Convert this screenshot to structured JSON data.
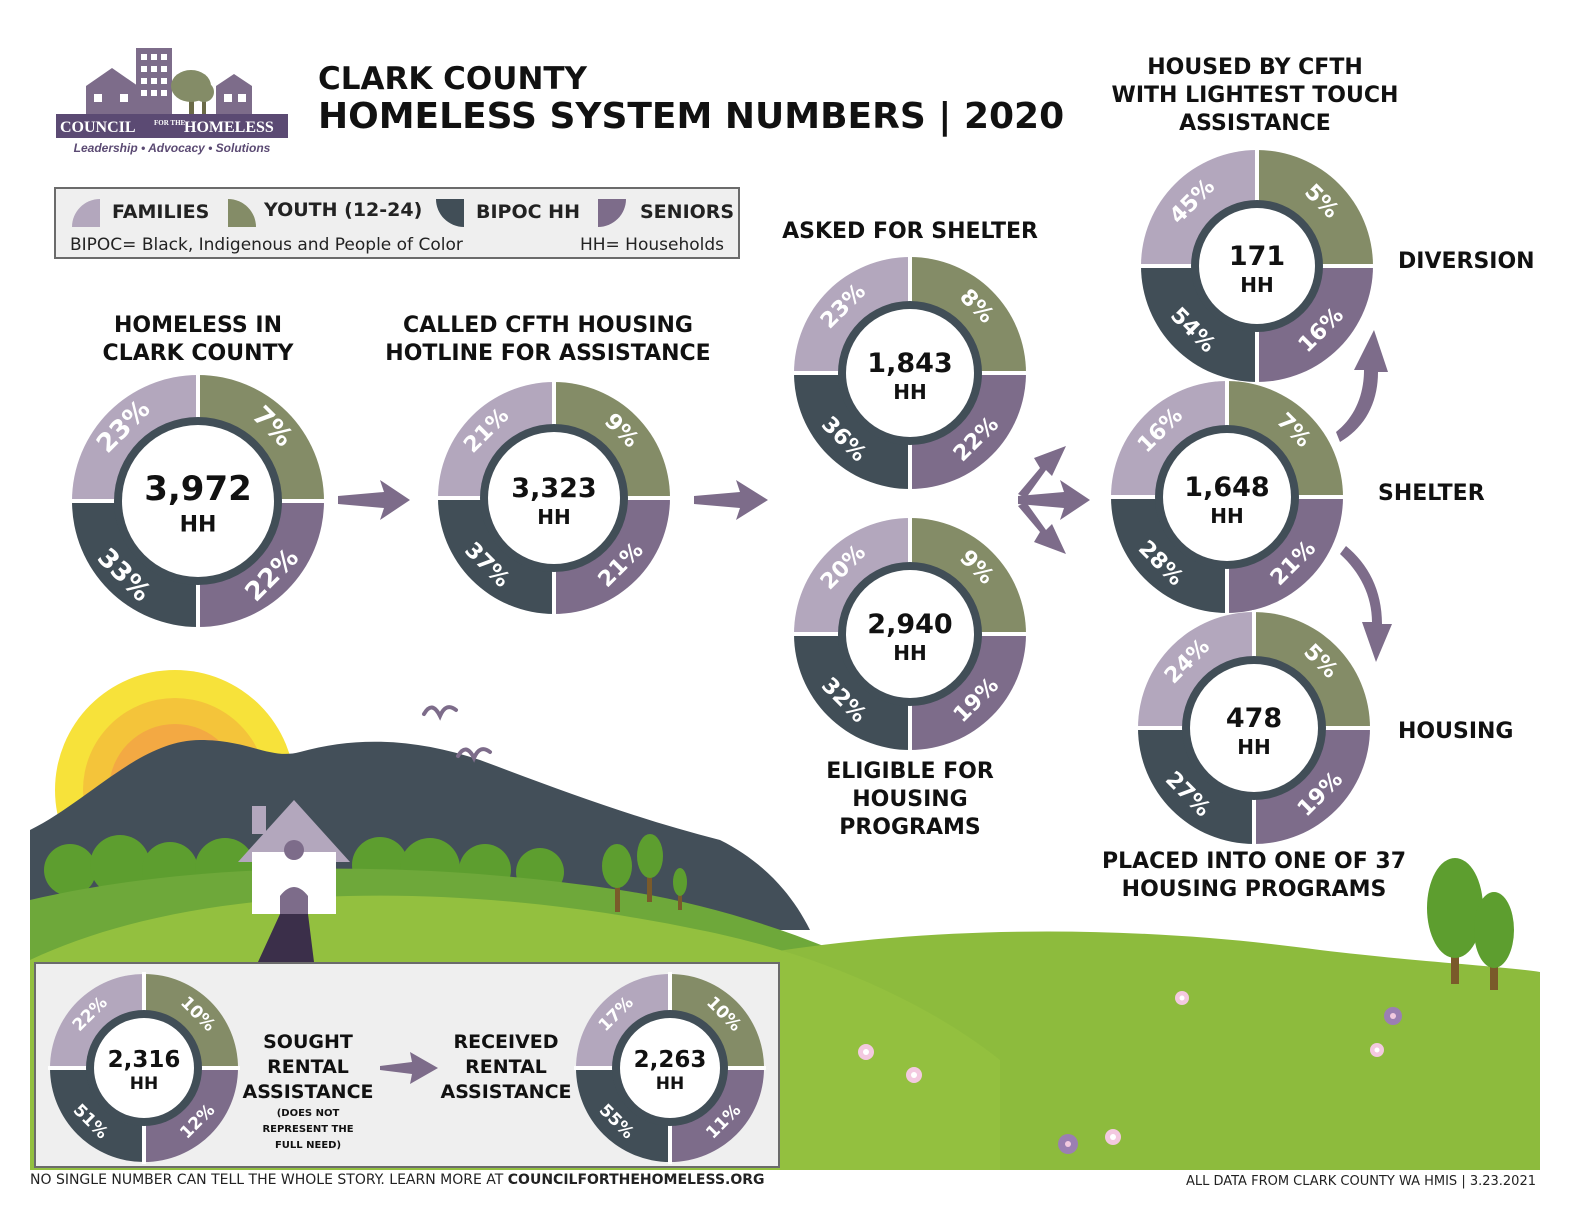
{
  "logo": {
    "name": "COUNCIL FOR THE HOMELESS",
    "name_left": "COUNCIL",
    "name_small": "FOR THE",
    "name_right": "HOMELESS",
    "tagline": "Leadership • Advocacy • Solutions"
  },
  "title": {
    "line1": "CLARK COUNTY",
    "line2": "HOMELESS SYSTEM NUMBERS | 2020"
  },
  "legend": {
    "items": [
      {
        "label": "FAMILIES",
        "color": "#b3a7bd"
      },
      {
        "label": "YOUTH (12-24)",
        "color": "#848c67"
      },
      {
        "label": "BIPOC HH",
        "color": "#414e57"
      },
      {
        "label": "SENIORS",
        "color": "#7d6c8a"
      }
    ],
    "note_left": "BIPOC= Black, Indigenous and People of Color",
    "note_right": "HH= Households"
  },
  "chart_data": [
    {
      "type": "pie",
      "id": "homeless",
      "title": "HOMELESS IN CLARK COUNTY",
      "title_lines": [
        "HOMELESS IN",
        "CLARK COUNTY"
      ],
      "total": "3,972",
      "unit": "HH",
      "slices": [
        {
          "label": "FAMILIES",
          "value": "23%"
        },
        {
          "label": "YOUTH (12-24)",
          "value": "7%"
        },
        {
          "label": "SENIORS",
          "value": "22%"
        },
        {
          "label": "BIPOC HH",
          "value": "33%"
        }
      ]
    },
    {
      "type": "pie",
      "id": "hotline",
      "title": "CALLED CFTH HOUSING HOTLINE FOR ASSISTANCE",
      "title_lines": [
        "CALLED CFTH HOUSING",
        "HOTLINE FOR ASSISTANCE"
      ],
      "total": "3,323",
      "unit": "HH",
      "slices": [
        {
          "label": "FAMILIES",
          "value": "21%"
        },
        {
          "label": "YOUTH (12-24)",
          "value": "9%"
        },
        {
          "label": "SENIORS",
          "value": "21%"
        },
        {
          "label": "BIPOC HH",
          "value": "37%"
        }
      ]
    },
    {
      "type": "pie",
      "id": "asked-shelter",
      "title": "ASKED FOR SHELTER",
      "title_lines": [
        "ASKED FOR SHELTER"
      ],
      "total": "1,843",
      "unit": "HH",
      "slices": [
        {
          "label": "FAMILIES",
          "value": "23%"
        },
        {
          "label": "YOUTH (12-24)",
          "value": "8%"
        },
        {
          "label": "SENIORS",
          "value": "22%"
        },
        {
          "label": "BIPOC HH",
          "value": "36%"
        }
      ]
    },
    {
      "type": "pie",
      "id": "eligible",
      "title": "ELIGIBLE FOR HOUSING PROGRAMS",
      "title_lines": [
        "ELIGIBLE FOR",
        "HOUSING",
        "PROGRAMS"
      ],
      "total": "2,940",
      "unit": "HH",
      "slices": [
        {
          "label": "FAMILIES",
          "value": "20%"
        },
        {
          "label": "YOUTH (12-24)",
          "value": "9%"
        },
        {
          "label": "SENIORS",
          "value": "19%"
        },
        {
          "label": "BIPOC HH",
          "value": "32%"
        }
      ]
    },
    {
      "type": "pie",
      "id": "diversion",
      "title": "HOUSED BY CFTH WITH LIGHTEST TOUCH ASSISTANCE",
      "title_lines": [
        "HOUSED BY CFTH",
        "WITH LIGHTEST TOUCH",
        "ASSISTANCE"
      ],
      "side_label": "DIVERSION",
      "total": "171",
      "unit": "HH",
      "slices": [
        {
          "label": "FAMILIES",
          "value": "45%"
        },
        {
          "label": "YOUTH (12-24)",
          "value": "5%"
        },
        {
          "label": "SENIORS",
          "value": "16%"
        },
        {
          "label": "BIPOC HH",
          "value": "54%"
        }
      ]
    },
    {
      "type": "pie",
      "id": "shelter",
      "side_label": "SHELTER",
      "total": "1,648",
      "unit": "HH",
      "slices": [
        {
          "label": "FAMILIES",
          "value": "16%"
        },
        {
          "label": "YOUTH (12-24)",
          "value": "7%"
        },
        {
          "label": "SENIORS",
          "value": "21%"
        },
        {
          "label": "BIPOC HH",
          "value": "28%"
        }
      ]
    },
    {
      "type": "pie",
      "id": "housing",
      "title": "PLACED INTO ONE OF 37 HOUSING PROGRAMS",
      "title_lines": [
        "PLACED INTO ONE OF 37",
        "HOUSING PROGRAMS"
      ],
      "side_label": "HOUSING",
      "total": "478",
      "unit": "HH",
      "slices": [
        {
          "label": "FAMILIES",
          "value": "24%"
        },
        {
          "label": "YOUTH (12-24)",
          "value": "5%"
        },
        {
          "label": "SENIORS",
          "value": "19%"
        },
        {
          "label": "BIPOC HH",
          "value": "27%"
        }
      ]
    },
    {
      "type": "pie",
      "id": "sought-rental",
      "title": "SOUGHT RENTAL ASSISTANCE",
      "title_lines": [
        "SOUGHT",
        "RENTAL",
        "ASSISTANCE"
      ],
      "note_lines": [
        "(DOES NOT",
        "REPRESENT THE",
        "FULL NEED)"
      ],
      "total": "2,316",
      "unit": "HH",
      "slices": [
        {
          "label": "FAMILIES",
          "value": "22%"
        },
        {
          "label": "YOUTH (12-24)",
          "value": "10%"
        },
        {
          "label": "SENIORS",
          "value": "12%"
        },
        {
          "label": "BIPOC HH",
          "value": "51%"
        }
      ]
    },
    {
      "type": "pie",
      "id": "received-rental",
      "title": "RECEIVED RENTAL ASSISTANCE",
      "title_lines": [
        "RECEIVED",
        "RENTAL",
        "ASSISTANCE"
      ],
      "total": "2,263",
      "unit": "HH",
      "slices": [
        {
          "label": "FAMILIES",
          "value": "17%"
        },
        {
          "label": "YOUTH (12-24)",
          "value": "10%"
        },
        {
          "label": "SENIORS",
          "value": "11%"
        },
        {
          "label": "BIPOC HH",
          "value": "55%"
        }
      ]
    }
  ],
  "footer": {
    "left_prefix": "NO SINGLE NUMBER CAN TELL THE WHOLE STORY. LEARN MORE AT ",
    "left_link": "COUNCILFORTHEHOMELESS.ORG",
    "right": "ALL DATA FROM CLARK COUNTY WA HMIS | 3.23.2021"
  }
}
